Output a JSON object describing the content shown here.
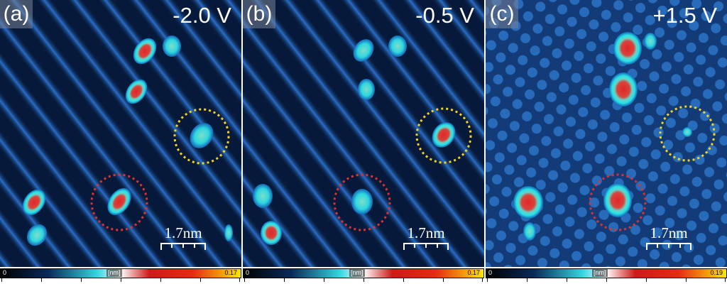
{
  "colors": {
    "background_dark": "#0b2448",
    "row_bright": "#2a6ec8",
    "adsorbate_core": "#e0262a",
    "adsorbate_rim": "#27e3e6",
    "circle_red": "#e03030",
    "circle_yellow": "#f2d21f"
  },
  "panels": [
    {
      "label": "(a)",
      "bias": "-2.0 V",
      "scalebar": "1.7nm",
      "colorbar": {
        "min": "0",
        "unit": "[nm]",
        "max": "0.17"
      }
    },
    {
      "label": "(b)",
      "bias": "-0.5 V",
      "scalebar": "1.7nm",
      "colorbar": {
        "min": "0",
        "unit": "[nm]",
        "max": "0.17"
      }
    },
    {
      "label": "(c)",
      "bias": "+1.5 V",
      "scalebar": "1.7nm",
      "colorbar": {
        "min": "0",
        "unit": "[nm]",
        "max": "0.19"
      }
    }
  ]
}
